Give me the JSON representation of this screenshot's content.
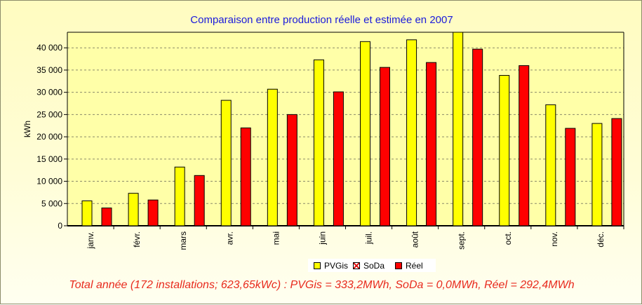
{
  "chart_data": {
    "type": "bar",
    "title": "Comparaison entre production réelle et estimée en 2007",
    "ylabel": "kWh",
    "xlabel": "",
    "ylim": [
      0,
      43500
    ],
    "yticks": [
      0,
      5000,
      10000,
      15000,
      20000,
      25000,
      30000,
      35000,
      40000
    ],
    "ytick_labels": [
      "0",
      "5 000",
      "10 000",
      "15 000",
      "20 000",
      "25 000",
      "30 000",
      "35 000",
      "40 000"
    ],
    "grid": "horizontal dashed",
    "legend_position": "bottom-center",
    "categories": [
      "janv.",
      "févr.",
      "mars",
      "avr.",
      "mai",
      "juin",
      "juil.",
      "août",
      "sept.",
      "oct.",
      "nov.",
      "déc."
    ],
    "series": [
      {
        "name": "PVGis",
        "color": "#ffff00",
        "values": [
          5600,
          7300,
          13200,
          28200,
          30700,
          37300,
          41400,
          41800,
          43500,
          33800,
          27200,
          23000
        ]
      },
      {
        "name": "SoDa",
        "color": "#ff0000",
        "values": [
          0,
          0,
          0,
          0,
          0,
          0,
          0,
          0,
          0,
          0,
          0,
          0
        ]
      },
      {
        "name": "Réel",
        "color": "#ff0000",
        "values": [
          4000,
          5800,
          11300,
          22000,
          25000,
          30100,
          35600,
          36700,
          39700,
          36000,
          21900,
          24100
        ]
      }
    ],
    "annotation": "Total année (172 installations; 623,65kWc) : PVGis = 333,2MWh, SoDa = 0,0MWh, Réel = 292,4MWh"
  },
  "colors": {
    "pvgis": "#ffff00",
    "reel": "#ff0000",
    "title": "#1a1adc",
    "annotation": "#e82a1e"
  }
}
